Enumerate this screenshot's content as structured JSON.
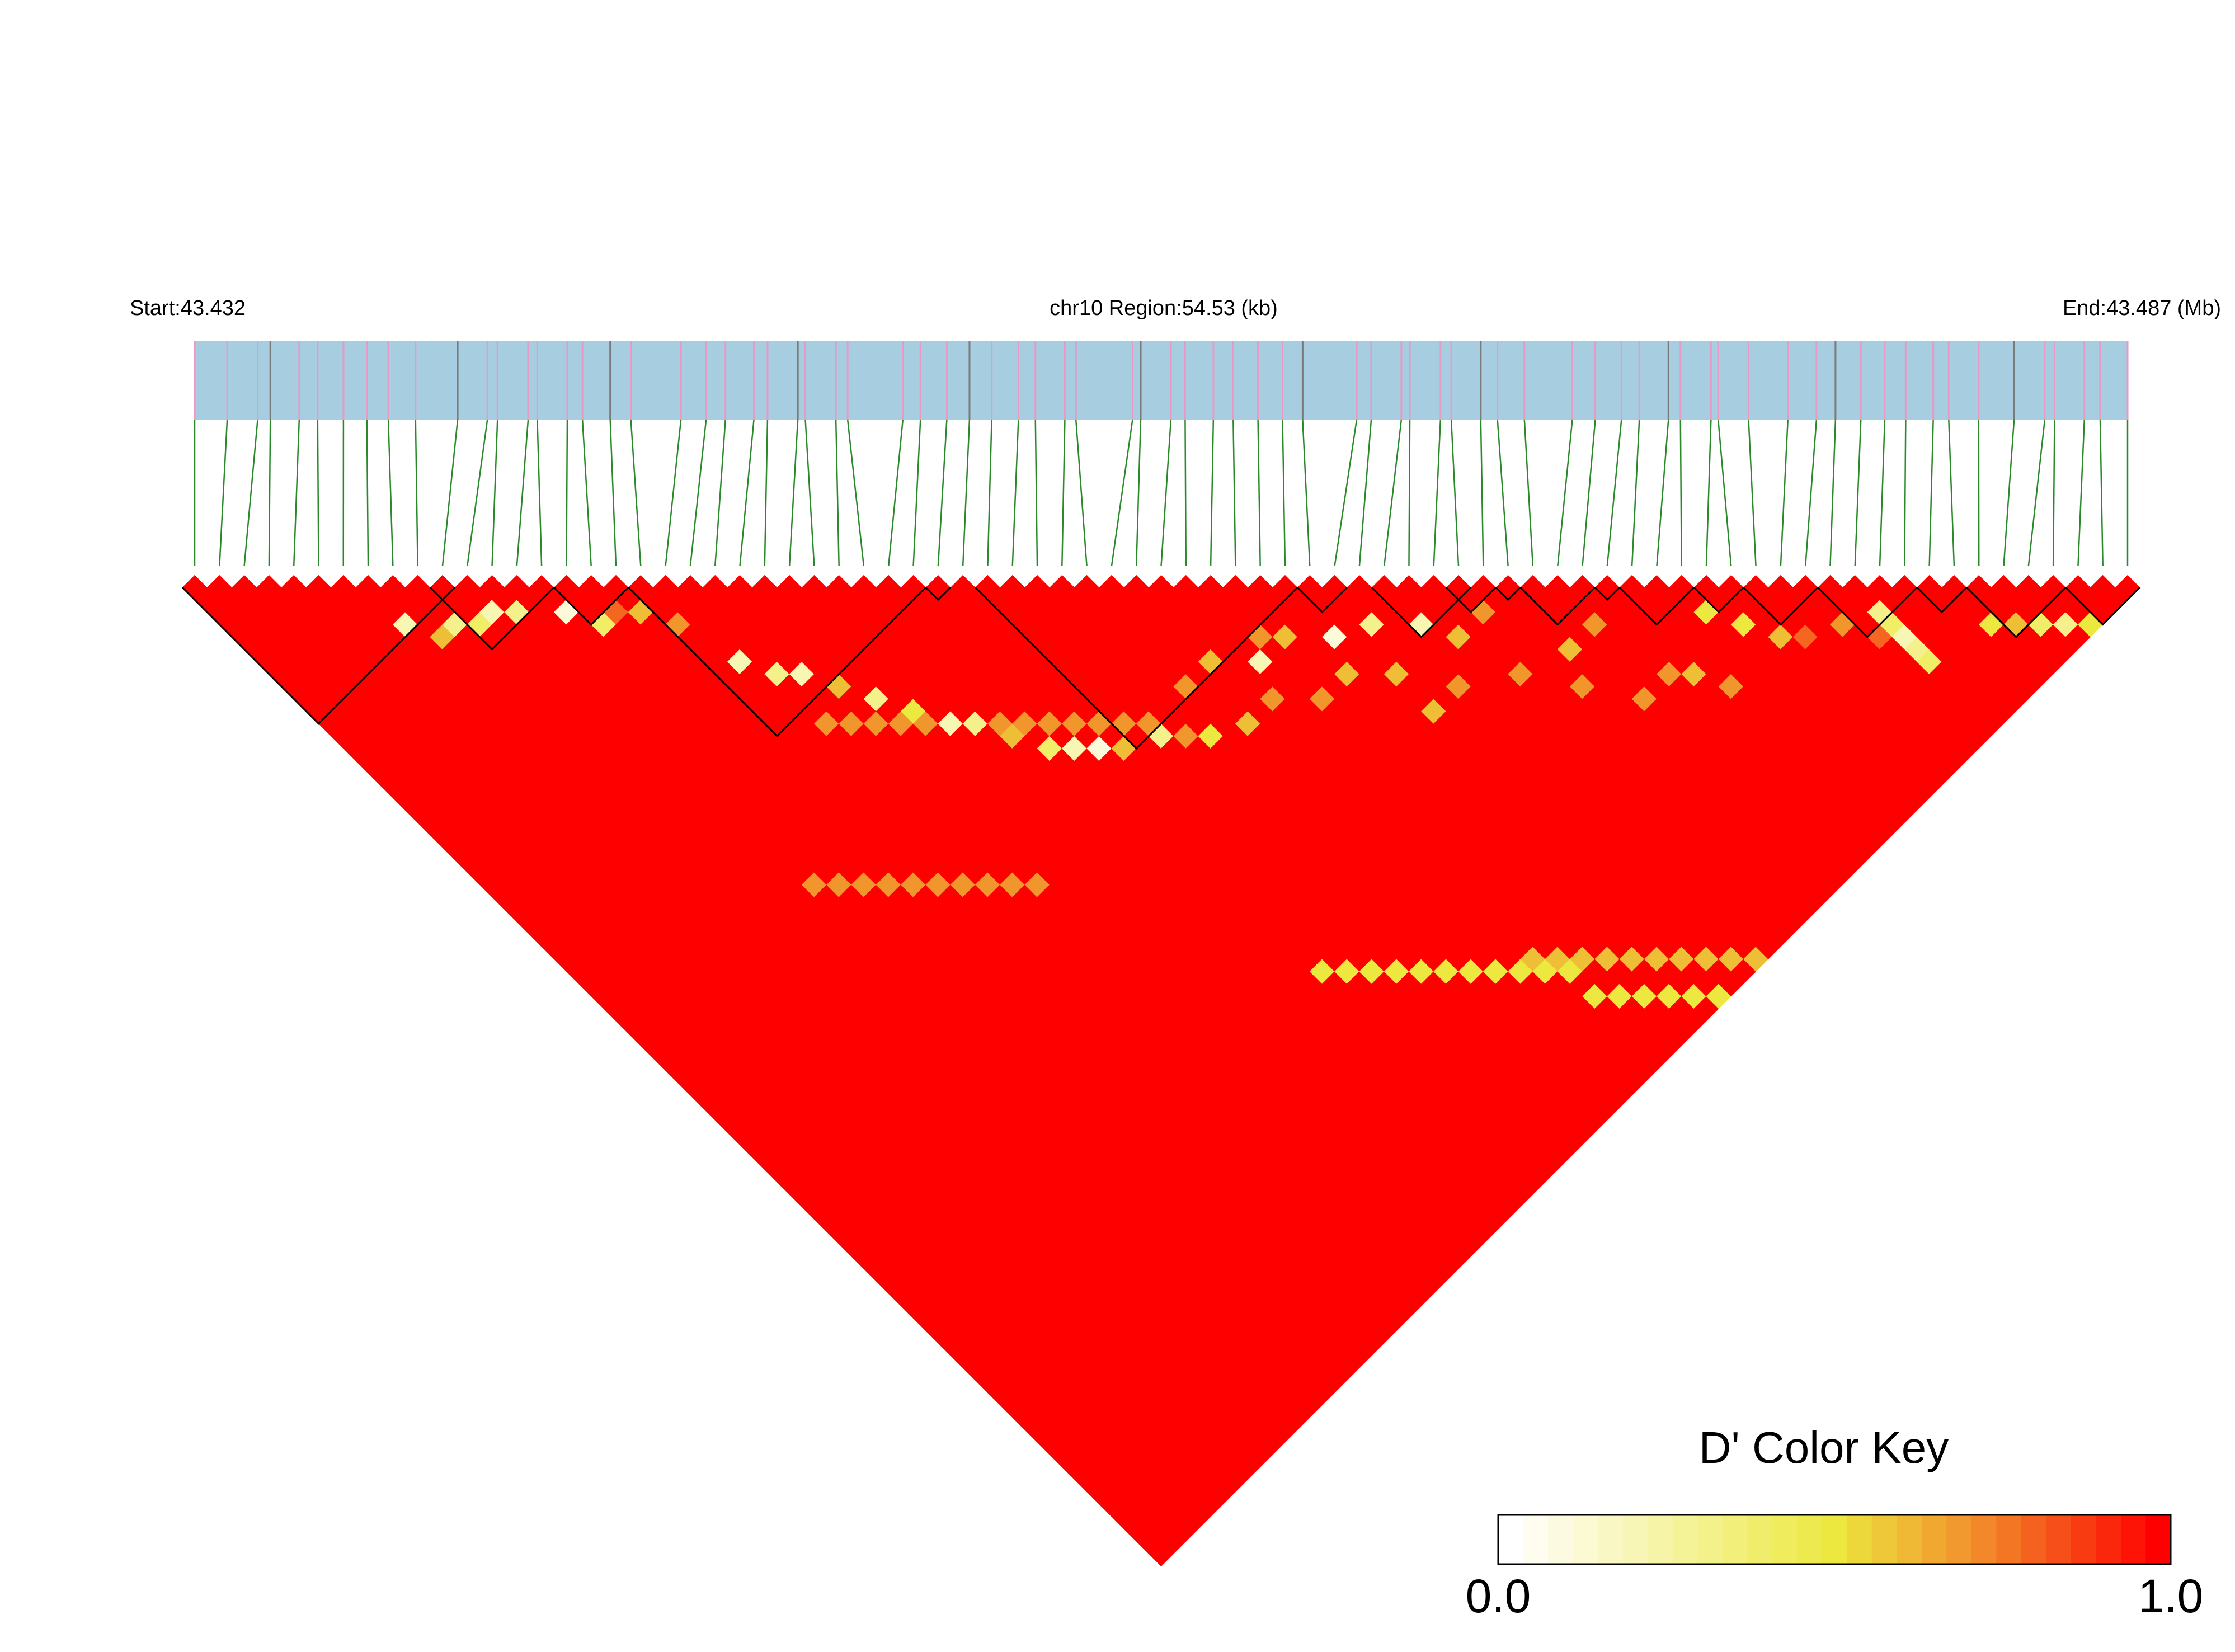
{
  "header": {
    "start_label": "Start:43.432",
    "region_label": "chr10 Region:54.53 (kb)",
    "end_label": "End:43.487 (Mb)"
  },
  "colors": {
    "gene_track": "#a6cde0",
    "snp_tick_pink": "#e89ac6",
    "snp_tick_dark": "#7a7a7a",
    "connector_line": "#2a8a2a",
    "ld_high": "#ff0000",
    "ld_low": "#ffffff",
    "block_outline": "#000000"
  },
  "chart_data": {
    "type": "heatmap",
    "title": "",
    "chromosome": "chr10",
    "region_kb": 54.53,
    "start_mb": 43.432,
    "end_mb": 43.487,
    "measure": "D'",
    "n_snps": 79,
    "default_value": 1.0,
    "low_value_pairs": [
      [
        12,
        14,
        0.3
      ],
      [
        10,
        13,
        0.4
      ],
      [
        9,
        12,
        0.3
      ],
      [
        11,
        13,
        0.2
      ],
      [
        8,
        12,
        0.6
      ],
      [
        7,
        10,
        0.2
      ],
      [
        14,
        16,
        0.1
      ],
      [
        15,
        18,
        0.4
      ],
      [
        16,
        18,
        0.8
      ],
      [
        17,
        19,
        0.6
      ],
      [
        18,
        21,
        0.7
      ],
      [
        19,
        25,
        0.2
      ],
      [
        20,
        27,
        0.3
      ],
      [
        21,
        28,
        0.2
      ],
      [
        22,
        30,
        0.6
      ],
      [
        23,
        32,
        0.3
      ],
      [
        24,
        34,
        0.5
      ],
      [
        25,
        36,
        0.2
      ],
      [
        26,
        37,
        0.3
      ],
      [
        27,
        39,
        0.6
      ],
      [
        28,
        41,
        0.4
      ],
      [
        29,
        42,
        0.2
      ],
      [
        30,
        43,
        0.1
      ],
      [
        31,
        44,
        0.6
      ],
      [
        33,
        45,
        0.3
      ],
      [
        40,
        46,
        0.2
      ],
      [
        41,
        45,
        0.7
      ],
      [
        42,
        46,
        0.6
      ],
      [
        55,
        58,
        0.7
      ],
      [
        60,
        62,
        0.5
      ],
      [
        61,
        64,
        0.5
      ],
      [
        62,
        66,
        0.6
      ],
      [
        63,
        67,
        0.8
      ],
      [
        65,
        68,
        0.7
      ],
      [
        66,
        70,
        0.8
      ],
      [
        67,
        69,
        0.3
      ],
      [
        67,
        70,
        0.4
      ],
      [
        67,
        71,
        0.2
      ],
      [
        67,
        72,
        0.3
      ],
      [
        67,
        73,
        0.4
      ],
      [
        71,
        74,
        0.5
      ],
      [
        72,
        75,
        0.6
      ],
      [
        73,
        76,
        0.4
      ],
      [
        74,
        77,
        0.3
      ],
      [
        75,
        78,
        0.5
      ],
      [
        38,
        44,
        0.6
      ],
      [
        36,
        44,
        0.7
      ],
      [
        39,
        48,
        0.7
      ],
      [
        43,
        50,
        0.6
      ],
      [
        45,
        52,
        0.6
      ],
      [
        47,
        55,
        0.7
      ],
      [
        44,
        48,
        0.1
      ],
      [
        46,
        49,
        0.3
      ],
      [
        48,
        51,
        0.2
      ],
      [
        49,
        53,
        0.6
      ],
      [
        51,
        53,
        0.7
      ],
      [
        34,
        46,
        0.7
      ],
      [
        35,
        47,
        0.5
      ],
      [
        37,
        48,
        0.6
      ],
      [
        41,
        50,
        0.7
      ],
      [
        45,
        55,
        0.6
      ],
      [
        50,
        57,
        0.7
      ],
      [
        53,
        58,
        0.6
      ],
      [
        56,
        63,
        0.7
      ],
      [
        57,
        64,
        0.6
      ],
      [
        52,
        60,
        0.7
      ],
      [
        54,
        63,
        0.7
      ],
      [
        58,
        66,
        0.7
      ]
    ],
    "diagonal_bands": [
      {
        "offset": 31,
        "from_snp": 30,
        "to_snp": 40,
        "value": 0.5
      },
      {
        "offset": 33,
        "from_snp": 40,
        "to_snp": 45,
        "value": 0.5
      },
      {
        "offset": 11,
        "from_snp": 20,
        "to_snp": 33,
        "value": 0.7
      },
      {
        "offset": 24,
        "from_snp": 13,
        "to_snp": 22,
        "value": 0.7
      },
      {
        "offset": 30,
        "from_snp": 39,
        "to_snp": 49,
        "value": 0.6
      }
    ],
    "blocks": [
      [
        0,
        10
      ],
      [
        10,
        14
      ],
      [
        15,
        17
      ],
      [
        18,
        29
      ],
      [
        30,
        30
      ],
      [
        32,
        44
      ],
      [
        45,
        46
      ],
      [
        48,
        51
      ],
      [
        51,
        52
      ],
      [
        53,
        53
      ],
      [
        54,
        56
      ],
      [
        57,
        57
      ],
      [
        58,
        60
      ],
      [
        61,
        62
      ],
      [
        63,
        65
      ],
      [
        66,
        69
      ],
      [
        70,
        71
      ],
      [
        72,
        75
      ],
      [
        76,
        78
      ]
    ],
    "color_key": {
      "title": "D' Color Key",
      "min_label": "0.0",
      "max_label": "1.0",
      "steps": 27
    }
  }
}
